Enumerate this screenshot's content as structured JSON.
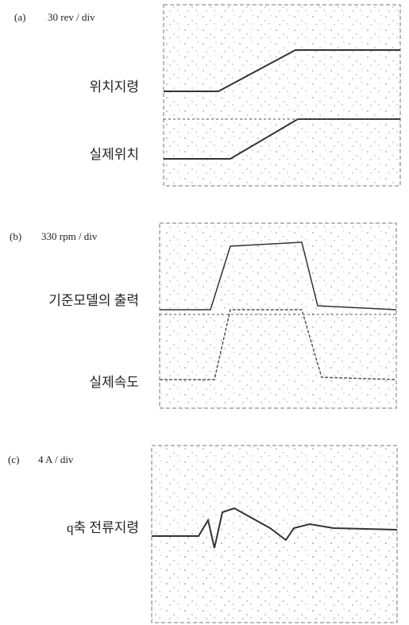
{
  "panels": [
    {
      "label": "(a)",
      "scale": "30 rev / div",
      "traces": [
        "위치지령",
        "실제위치"
      ]
    },
    {
      "label": "(b)",
      "scale": "330 rpm / div",
      "traces": [
        "기준모델의 출력",
        "실제속도"
      ]
    },
    {
      "label": "(c)",
      "scale": "4 A / div",
      "traces": [
        "q축 전류지령"
      ]
    }
  ]
}
